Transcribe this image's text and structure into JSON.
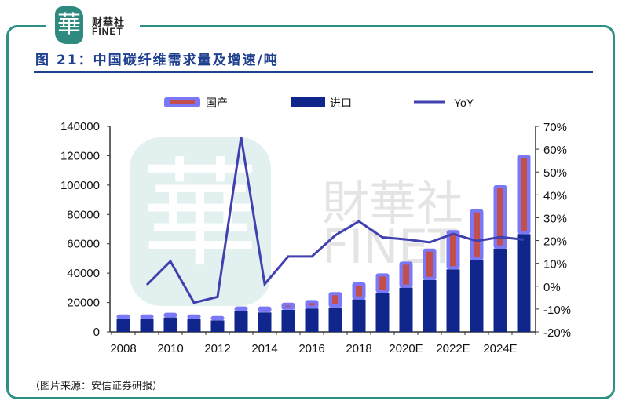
{
  "header": {
    "logo_glyph": "華",
    "logo_cn": "财華社",
    "logo_en": "FINET",
    "title": "图 21：中国碳纤维需求量及增速/吨"
  },
  "watermark": {
    "cn": "財華社",
    "en": "FINET",
    "glyph": "華"
  },
  "source": "（图片来源：安信证券研报）",
  "colors": {
    "import": "#10268c",
    "domestic_outer": "#7b78f8",
    "domestic_inner": "#c24f4c",
    "yoy": "#4040b0",
    "frame": "#2e8f86",
    "title": "#1f3f8f"
  },
  "chart_data": {
    "type": "bar+line",
    "stacked": true,
    "legend_position": "top",
    "legend": [
      "国产",
      "进口",
      "YoY"
    ],
    "categories": [
      "2008",
      "2009",
      "2010",
      "2011",
      "2012",
      "2013",
      "2014",
      "2015",
      "2016",
      "2017",
      "2018",
      "2019",
      "2020E",
      "2021E",
      "2022E",
      "2023E",
      "2024E",
      "2025E"
    ],
    "x_tick_labels": [
      "2008",
      "2010",
      "2012",
      "2014",
      "2016",
      "2018",
      "2020E",
      "2022E",
      "2024E"
    ],
    "series": [
      {
        "name": "进口",
        "type": "bar",
        "axis": "left",
        "values": [
          8700,
          8700,
          9800,
          8700,
          7800,
          14100,
          13200,
          15000,
          15900,
          16700,
          22100,
          26600,
          30100,
          35400,
          42600,
          48800,
          56800,
          66600
        ]
      },
      {
        "name": "国产",
        "type": "bar",
        "axis": "left",
        "values": [
          3200,
          3200,
          3200,
          3200,
          3000,
          3200,
          4100,
          4900,
          5800,
          10400,
          11600,
          13300,
          17800,
          21400,
          26700,
          34700,
          43100,
          54000
        ]
      },
      {
        "name": "YoY",
        "type": "line",
        "axis": "right",
        "values": [
          null,
          0.6,
          10.9,
          -7.2,
          -4.7,
          65.3,
          0.9,
          13.0,
          13.0,
          22.3,
          28.4,
          21.4,
          20.5,
          19.2,
          22.9,
          19.8,
          21.5,
          20.4
        ]
      }
    ],
    "y_left": {
      "range": [
        0,
        140000
      ],
      "ticks": [
        "0",
        "20000",
        "40000",
        "60000",
        "80000",
        "100000",
        "120000",
        "140000"
      ]
    },
    "y_right": {
      "range": [
        -20,
        70
      ],
      "unit": "%",
      "ticks": [
        "-20%",
        "-10%",
        "0%",
        "10%",
        "20%",
        "30%",
        "40%",
        "50%",
        "60%",
        "70%"
      ]
    },
    "grid": false
  }
}
